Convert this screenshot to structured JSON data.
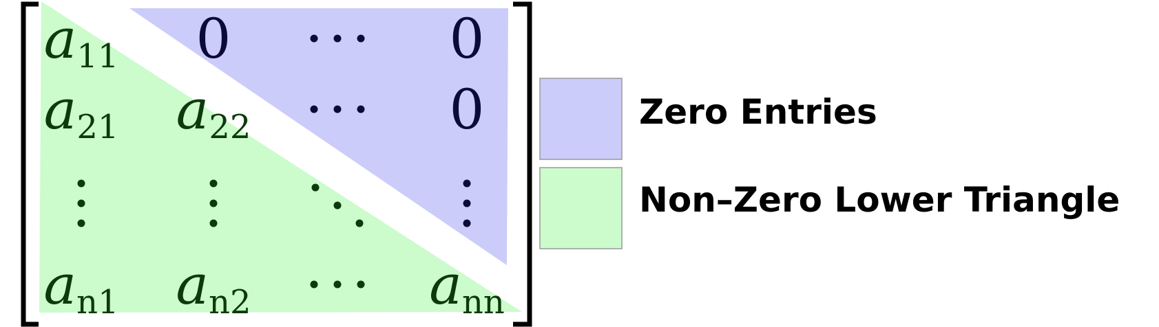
{
  "colors": {
    "zero_region": "#ccccfa",
    "lower_region": "#ccfbcc",
    "zero_text": "#0b0b3a",
    "lower_text": "#0d3a0d",
    "bracket": "#000000",
    "legend_text": "#000000",
    "swatch_border": "#999999"
  },
  "matrix": {
    "rows": [
      [
        {
          "base": "a",
          "sub": "11",
          "region": "lower"
        },
        {
          "base": "0",
          "region": "zero"
        },
        {
          "dots": "hdots",
          "region": "zero"
        },
        {
          "base": "0",
          "region": "zero"
        }
      ],
      [
        {
          "base": "a",
          "sub": "21",
          "region": "lower"
        },
        {
          "base": "a",
          "sub": "22",
          "region": "lower"
        },
        {
          "dots": "hdots",
          "region": "zero"
        },
        {
          "base": "0",
          "region": "zero"
        }
      ],
      [
        {
          "dots": "vdots",
          "region": "lower"
        },
        {
          "dots": "vdots",
          "region": "lower"
        },
        {
          "dots": "ddots",
          "region": "lower"
        },
        {
          "dots": "vdots",
          "region": "zero"
        }
      ],
      [
        {
          "base": "a",
          "sub": "n1",
          "region": "lower"
        },
        {
          "base": "a",
          "sub": "n2",
          "region": "lower"
        },
        {
          "dots": "hdots",
          "region": "lower"
        },
        {
          "base": "a",
          "sub": "nn",
          "region": "lower"
        }
      ]
    ]
  },
  "legend": {
    "zero_label": "Zero Entries",
    "lower_label": "Non–Zero Lower Triangle"
  }
}
